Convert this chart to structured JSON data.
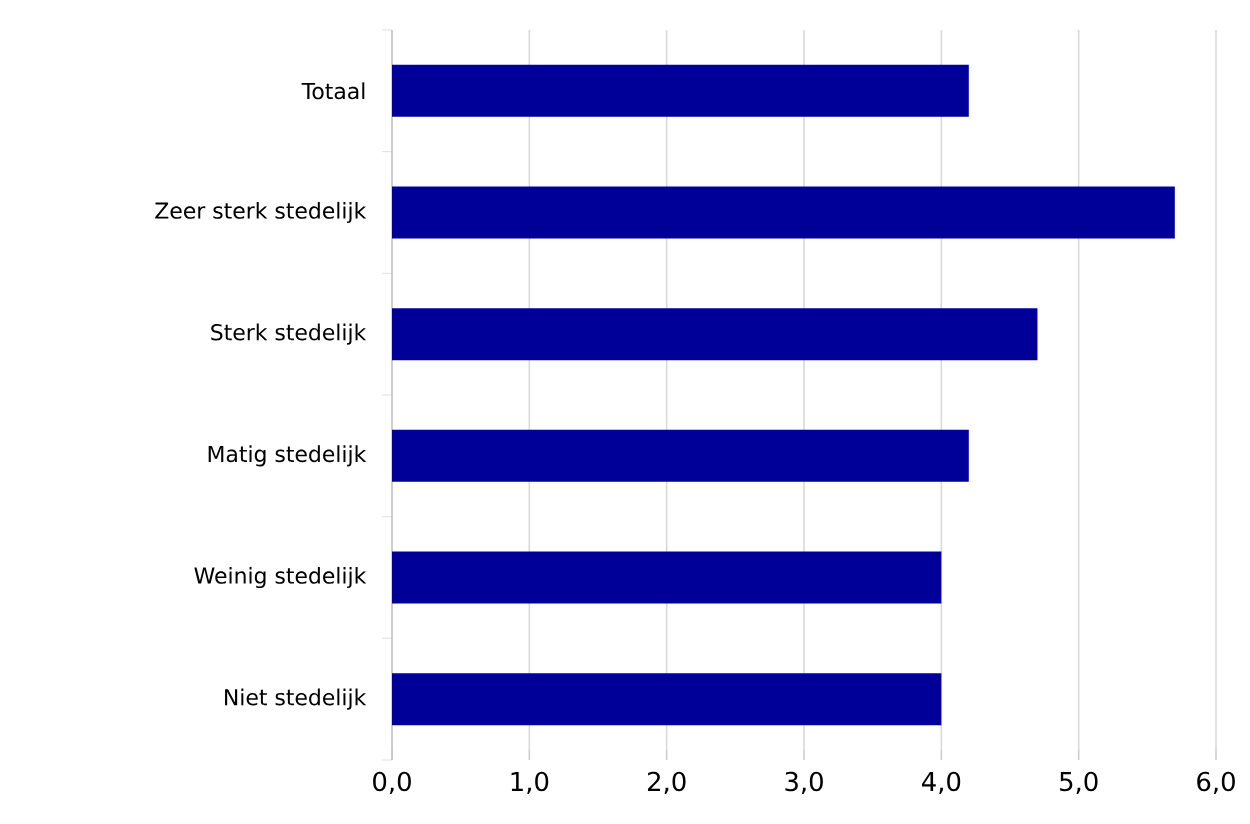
{
  "chart_data": {
    "type": "bar",
    "orientation": "horizontal",
    "categories": [
      "Totaal",
      "Zeer sterk stedelijk",
      "Sterk stedelijk",
      "Matig stedelijk",
      "Weinig stedelijk",
      "Niet stedelijk"
    ],
    "values": [
      4.2,
      5.7,
      4.7,
      4.2,
      4.0,
      4.0
    ],
    "color": "#000099",
    "xlim": [
      0,
      6
    ],
    "xticks": [
      {
        "value": 0,
        "label": "0,0"
      },
      {
        "value": 1,
        "label": "1,0"
      },
      {
        "value": 2,
        "label": "2,0"
      },
      {
        "value": 3,
        "label": "3,0"
      },
      {
        "value": 4,
        "label": "4,0"
      },
      {
        "value": 5,
        "label": "5,0"
      },
      {
        "value": 6,
        "label": "6,0"
      }
    ],
    "grid": "x"
  }
}
